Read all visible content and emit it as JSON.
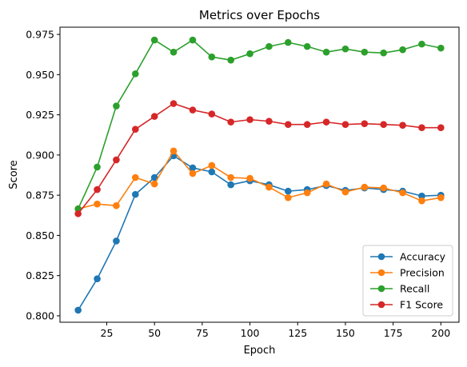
{
  "chart_data": {
    "type": "line",
    "title": "Metrics over Epochs",
    "xlabel": "Epoch",
    "ylabel": "Score",
    "x": [
      10,
      20,
      30,
      40,
      50,
      60,
      70,
      80,
      90,
      100,
      110,
      120,
      130,
      140,
      150,
      160,
      170,
      180,
      190,
      200
    ],
    "xlim": [
      0.5,
      209.5
    ],
    "ylim": [
      0.796,
      0.9795
    ],
    "xticks": [
      25,
      50,
      75,
      100,
      125,
      150,
      175,
      200
    ],
    "xtick_labels": [
      "25",
      "50",
      "75",
      "100",
      "125",
      "150",
      "175",
      "200"
    ],
    "yticks": [
      0.8,
      0.825,
      0.85,
      0.875,
      0.9,
      0.925,
      0.95,
      0.975
    ],
    "ytick_labels": [
      "0.800",
      "0.825",
      "0.850",
      "0.875",
      "0.900",
      "0.925",
      "0.950",
      "0.975"
    ],
    "grid": false,
    "legend_position": "lower-right",
    "series": [
      {
        "name": "Accuracy",
        "color": "#1f77b4",
        "values": [
          0.8035,
          0.823,
          0.8465,
          0.8755,
          0.886,
          0.8995,
          0.892,
          0.8895,
          0.8815,
          0.884,
          0.8815,
          0.8775,
          0.8785,
          0.881,
          0.878,
          0.8795,
          0.8785,
          0.8775,
          0.8745,
          0.875
        ]
      },
      {
        "name": "Precision",
        "color": "#ff7f0e",
        "values": [
          0.8665,
          0.8695,
          0.8685,
          0.886,
          0.882,
          0.9025,
          0.8885,
          0.8935,
          0.886,
          0.8855,
          0.88,
          0.8735,
          0.8765,
          0.882,
          0.877,
          0.88,
          0.8795,
          0.8765,
          0.8715,
          0.8735
        ]
      },
      {
        "name": "Recall",
        "color": "#2ca02c",
        "values": [
          0.8665,
          0.8925,
          0.9305,
          0.9505,
          0.9715,
          0.964,
          0.9715,
          0.961,
          0.959,
          0.963,
          0.9675,
          0.97,
          0.9675,
          0.964,
          0.966,
          0.964,
          0.9635,
          0.9655,
          0.969,
          0.9665
        ]
      },
      {
        "name": "F1 Score",
        "color": "#d62728",
        "values": [
          0.8635,
          0.8785,
          0.897,
          0.916,
          0.924,
          0.932,
          0.928,
          0.9255,
          0.9205,
          0.922,
          0.921,
          0.919,
          0.919,
          0.9205,
          0.919,
          0.9195,
          0.919,
          0.9185,
          0.917,
          0.917
        ]
      }
    ]
  }
}
